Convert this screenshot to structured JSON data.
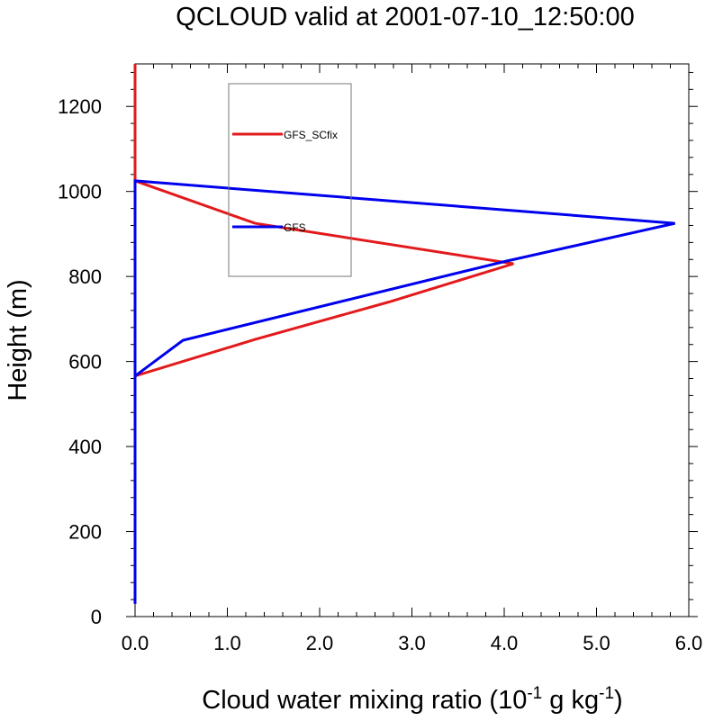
{
  "chart_data": {
    "type": "line",
    "title": "QCLOUD valid at 2001-07-10_12:50:00",
    "xlabel": "Cloud water mixing ratio",
    "xlabel_units": {
      "open": "(10",
      "exp1": "-1",
      "mid": " g kg",
      "exp2": "-1",
      "close": ")"
    },
    "ylabel": "Height (m)",
    "xlim": [
      0,
      6
    ],
    "ylim": [
      0,
      1300
    ],
    "xticks": [
      0,
      1,
      2,
      3,
      4,
      5,
      6
    ],
    "xtick_labels": [
      "0.0",
      "1.0",
      "2.0",
      "3.0",
      "4.0",
      "5.0",
      "6.0"
    ],
    "yticks": [
      0,
      200,
      400,
      600,
      800,
      1000,
      1200
    ],
    "ytick_labels": [
      "0",
      "200",
      "400",
      "600",
      "800",
      "1000",
      "1200"
    ],
    "grid": false,
    "legend_position": "upper-left inside plot",
    "series": [
      {
        "name": "GFS_SCfix",
        "color": "#e31a1c",
        "x": [
          0,
          0,
          0,
          0,
          1.3,
          4.1,
          2.75,
          1.3,
          0,
          0,
          0,
          0
        ],
        "y": [
          30,
          400,
          566,
          1025,
          925,
          830,
          740,
          652,
          566,
          400,
          1025,
          1300
        ]
      },
      {
        "name": "GFS",
        "color": "#0000ee",
        "x": [
          0,
          0,
          0,
          5.85,
          4.0,
          0.52,
          0,
          0
        ],
        "y": [
          30,
          566,
          1025,
          925,
          835,
          650,
          566,
          30
        ]
      }
    ]
  }
}
